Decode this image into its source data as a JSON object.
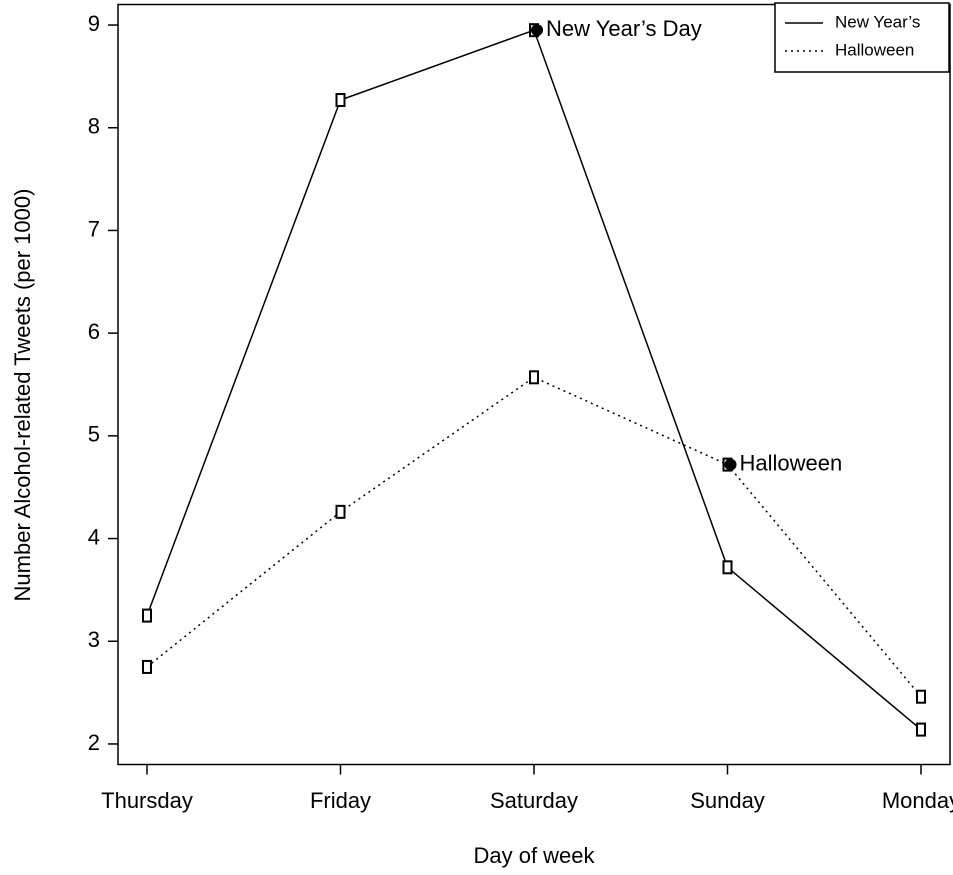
{
  "chart_data": {
    "type": "line",
    "x_label": "Day of week",
    "y_label": "Number Alcohol-related Tweets (per 1000)",
    "categories": [
      "Thursday",
      "Friday",
      "Saturday",
      "Sunday",
      "Monday"
    ],
    "series": [
      {
        "name": "New Year’s",
        "color": "#000000",
        "dash": "solid",
        "values": [
          3.25,
          8.27,
          8.95,
          3.72,
          2.14
        ]
      },
      {
        "name": "Halloween",
        "color": "#000000",
        "dash": "dotted",
        "values": [
          2.75,
          4.26,
          5.57,
          4.72,
          2.46
        ]
      }
    ],
    "annotations": [
      {
        "text": "New Year’s Day",
        "series": "New Year’s",
        "category": "Saturday"
      },
      {
        "text": "Halloween",
        "series": "Halloween",
        "category": "Sunday"
      }
    ],
    "ylim": [
      1.8,
      9.2
    ],
    "yticks": [
      2,
      3,
      4,
      5,
      6,
      7,
      8,
      9
    ],
    "grid": false,
    "legend": "top-right"
  }
}
